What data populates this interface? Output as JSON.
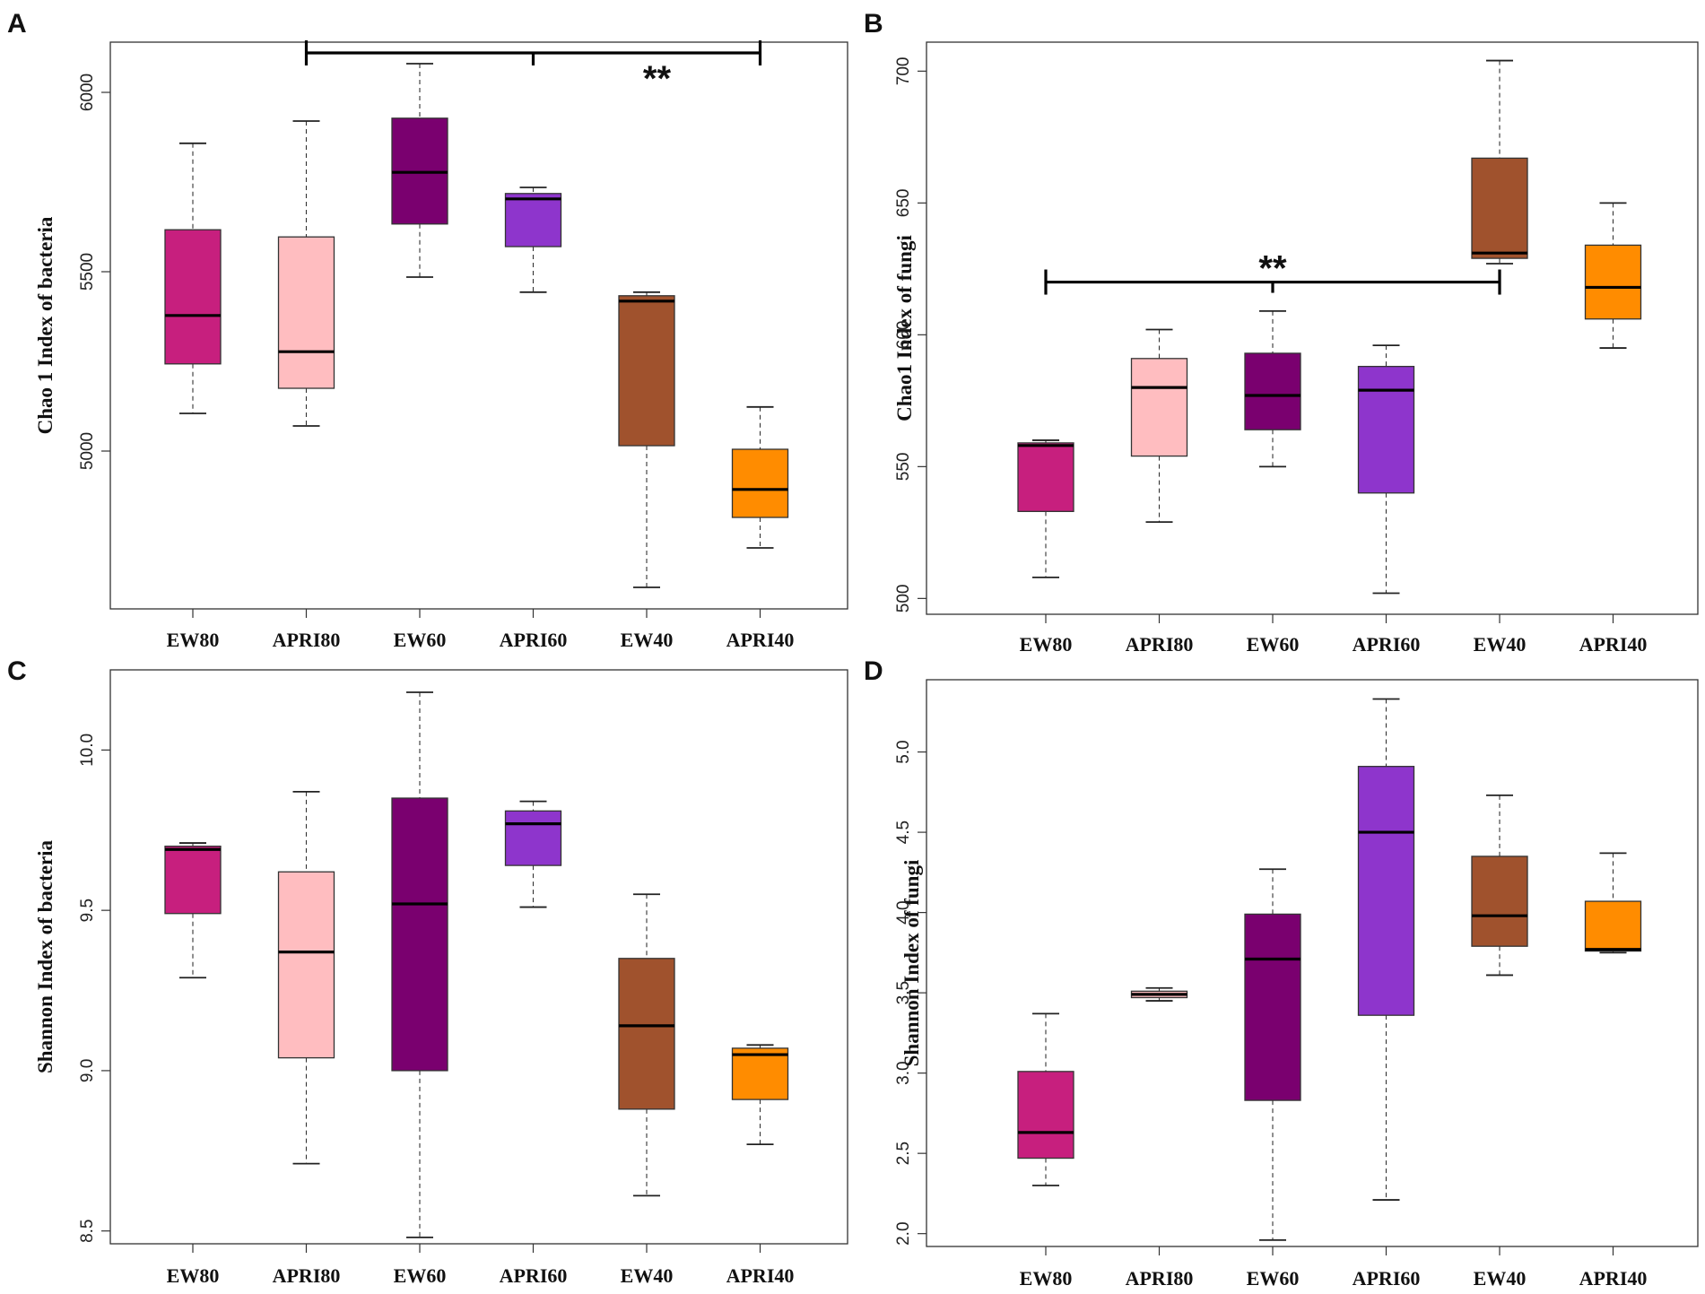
{
  "chart_data": [
    {
      "type": "boxplot",
      "panel": "A",
      "title": "",
      "xlabel": "",
      "ylabel": "Chao 1 Index of bacteria",
      "categories": [
        "EW80",
        "APRI80",
        "EW60",
        "APRI60",
        "EW40",
        "APRI40"
      ],
      "colors": [
        "#c71f7e",
        "#ffbdc0",
        "#7a006f",
        "#8e35cc",
        "#a0522d",
        "#ff8c00"
      ],
      "ylim": [
        4560,
        6140
      ],
      "yticks": [
        5000,
        5500,
        6000
      ],
      "boxes": [
        {
          "group": "EW80",
          "min": 5105,
          "q1": 5243,
          "median": 5378,
          "q3": 5617,
          "max": 5858
        },
        {
          "group": "APRI80",
          "min": 5070,
          "q1": 5175,
          "median": 5277,
          "q3": 5597,
          "max": 5920
        },
        {
          "group": "EW60",
          "min": 5485,
          "q1": 5633,
          "median": 5777,
          "q3": 5928,
          "max": 6080
        },
        {
          "group": "APRI60",
          "min": 5443,
          "q1": 5570,
          "median": 5703,
          "q3": 5718,
          "max": 5735
        },
        {
          "group": "EW40",
          "min": 4620,
          "q1": 5015,
          "median": 5418,
          "q3": 5433,
          "max": 5443
        },
        {
          "group": "APRI40",
          "min": 4730,
          "q1": 4815,
          "median": 4893,
          "q3": 5005,
          "max": 5123
        }
      ],
      "significance": {
        "label": "**",
        "from": "APRI80",
        "to": "APRI40",
        "y": 6110
      }
    },
    {
      "type": "boxplot",
      "panel": "B",
      "title": "",
      "xlabel": "",
      "ylabel": "Chao1  Index of fungi",
      "categories": [
        "EW80",
        "APRI80",
        "EW60",
        "APRI60",
        "EW40",
        "APRI40"
      ],
      "colors": [
        "#c71f7e",
        "#ffbdc0",
        "#7a006f",
        "#8e35cc",
        "#a0522d",
        "#ff8c00"
      ],
      "ylim": [
        494,
        711
      ],
      "yticks": [
        500,
        550,
        600,
        650,
        700
      ],
      "boxes": [
        {
          "group": "EW80",
          "min": 508,
          "q1": 533,
          "median": 558,
          "q3": 559,
          "max": 560
        },
        {
          "group": "APRI80",
          "min": 529,
          "q1": 554,
          "median": 580,
          "q3": 591,
          "max": 602
        },
        {
          "group": "EW60",
          "min": 550,
          "q1": 564,
          "median": 577,
          "q3": 593,
          "max": 609
        },
        {
          "group": "APRI60",
          "min": 502,
          "q1": 540,
          "median": 579,
          "q3": 588,
          "max": 596
        },
        {
          "group": "EW40",
          "min": 627,
          "q1": 629,
          "median": 631,
          "q3": 667,
          "max": 704
        },
        {
          "group": "APRI40",
          "min": 595,
          "q1": 606,
          "median": 618,
          "q3": 634,
          "max": 650
        }
      ],
      "significance": {
        "label": "**",
        "from": "EW80",
        "to": "EW40",
        "y": 620
      }
    },
    {
      "type": "boxplot",
      "panel": "C",
      "title": "",
      "xlabel": "",
      "ylabel": "Shannon Index of bacteria",
      "categories": [
        "EW80",
        "APRI80",
        "EW60",
        "APRI60",
        "EW40",
        "APRI40"
      ],
      "colors": [
        "#c71f7e",
        "#ffbdc0",
        "#7a006f",
        "#8e35cc",
        "#a0522d",
        "#ff8c00"
      ],
      "ylim": [
        8.46,
        10.25
      ],
      "yticks": [
        8.5,
        9.0,
        9.5,
        10.0
      ],
      "boxes": [
        {
          "group": "EW80",
          "min": 9.29,
          "q1": 9.49,
          "median": 9.69,
          "q3": 9.7,
          "max": 9.71
        },
        {
          "group": "APRI80",
          "min": 8.71,
          "q1": 9.04,
          "median": 9.37,
          "q3": 9.62,
          "max": 9.87
        },
        {
          "group": "EW60",
          "min": 8.48,
          "q1": 9.0,
          "median": 9.52,
          "q3": 9.85,
          "max": 10.18
        },
        {
          "group": "APRI60",
          "min": 9.51,
          "q1": 9.64,
          "median": 9.77,
          "q3": 9.81,
          "max": 9.84
        },
        {
          "group": "EW40",
          "min": 8.61,
          "q1": 8.88,
          "median": 9.14,
          "q3": 9.35,
          "max": 9.55
        },
        {
          "group": "APRI40",
          "min": 8.77,
          "q1": 8.91,
          "median": 9.05,
          "q3": 9.07,
          "max": 9.08
        }
      ]
    },
    {
      "type": "boxplot",
      "panel": "D",
      "title": "",
      "xlabel": "",
      "ylabel": "Shannon Index of fungi",
      "categories": [
        "EW80",
        "APRI80",
        "EW60",
        "APRI60",
        "EW40",
        "APRI40"
      ],
      "colors": [
        "#c71f7e",
        "#ffbdc0",
        "#7a006f",
        "#8e35cc",
        "#a0522d",
        "#ff8c00"
      ],
      "ylim": [
        1.92,
        5.45
      ],
      "yticks": [
        2.0,
        2.5,
        3.0,
        3.5,
        4.0,
        4.5,
        5.0
      ],
      "boxes": [
        {
          "group": "EW80",
          "min": 2.3,
          "q1": 2.47,
          "median": 2.63,
          "q3": 3.01,
          "max": 3.37
        },
        {
          "group": "APRI80",
          "min": 3.45,
          "q1": 3.47,
          "median": 3.49,
          "q3": 3.51,
          "max": 3.53
        },
        {
          "group": "EW60",
          "min": 1.96,
          "q1": 2.83,
          "median": 3.71,
          "q3": 3.99,
          "max": 4.27
        },
        {
          "group": "APRI60",
          "min": 2.21,
          "q1": 3.36,
          "median": 4.5,
          "q3": 4.91,
          "max": 5.33
        },
        {
          "group": "EW40",
          "min": 3.61,
          "q1": 3.79,
          "median": 3.98,
          "q3": 4.35,
          "max": 4.73
        },
        {
          "group": "APRI40",
          "min": 3.75,
          "q1": 3.76,
          "median": 3.77,
          "q3": 4.07,
          "max": 4.37
        }
      ]
    }
  ]
}
